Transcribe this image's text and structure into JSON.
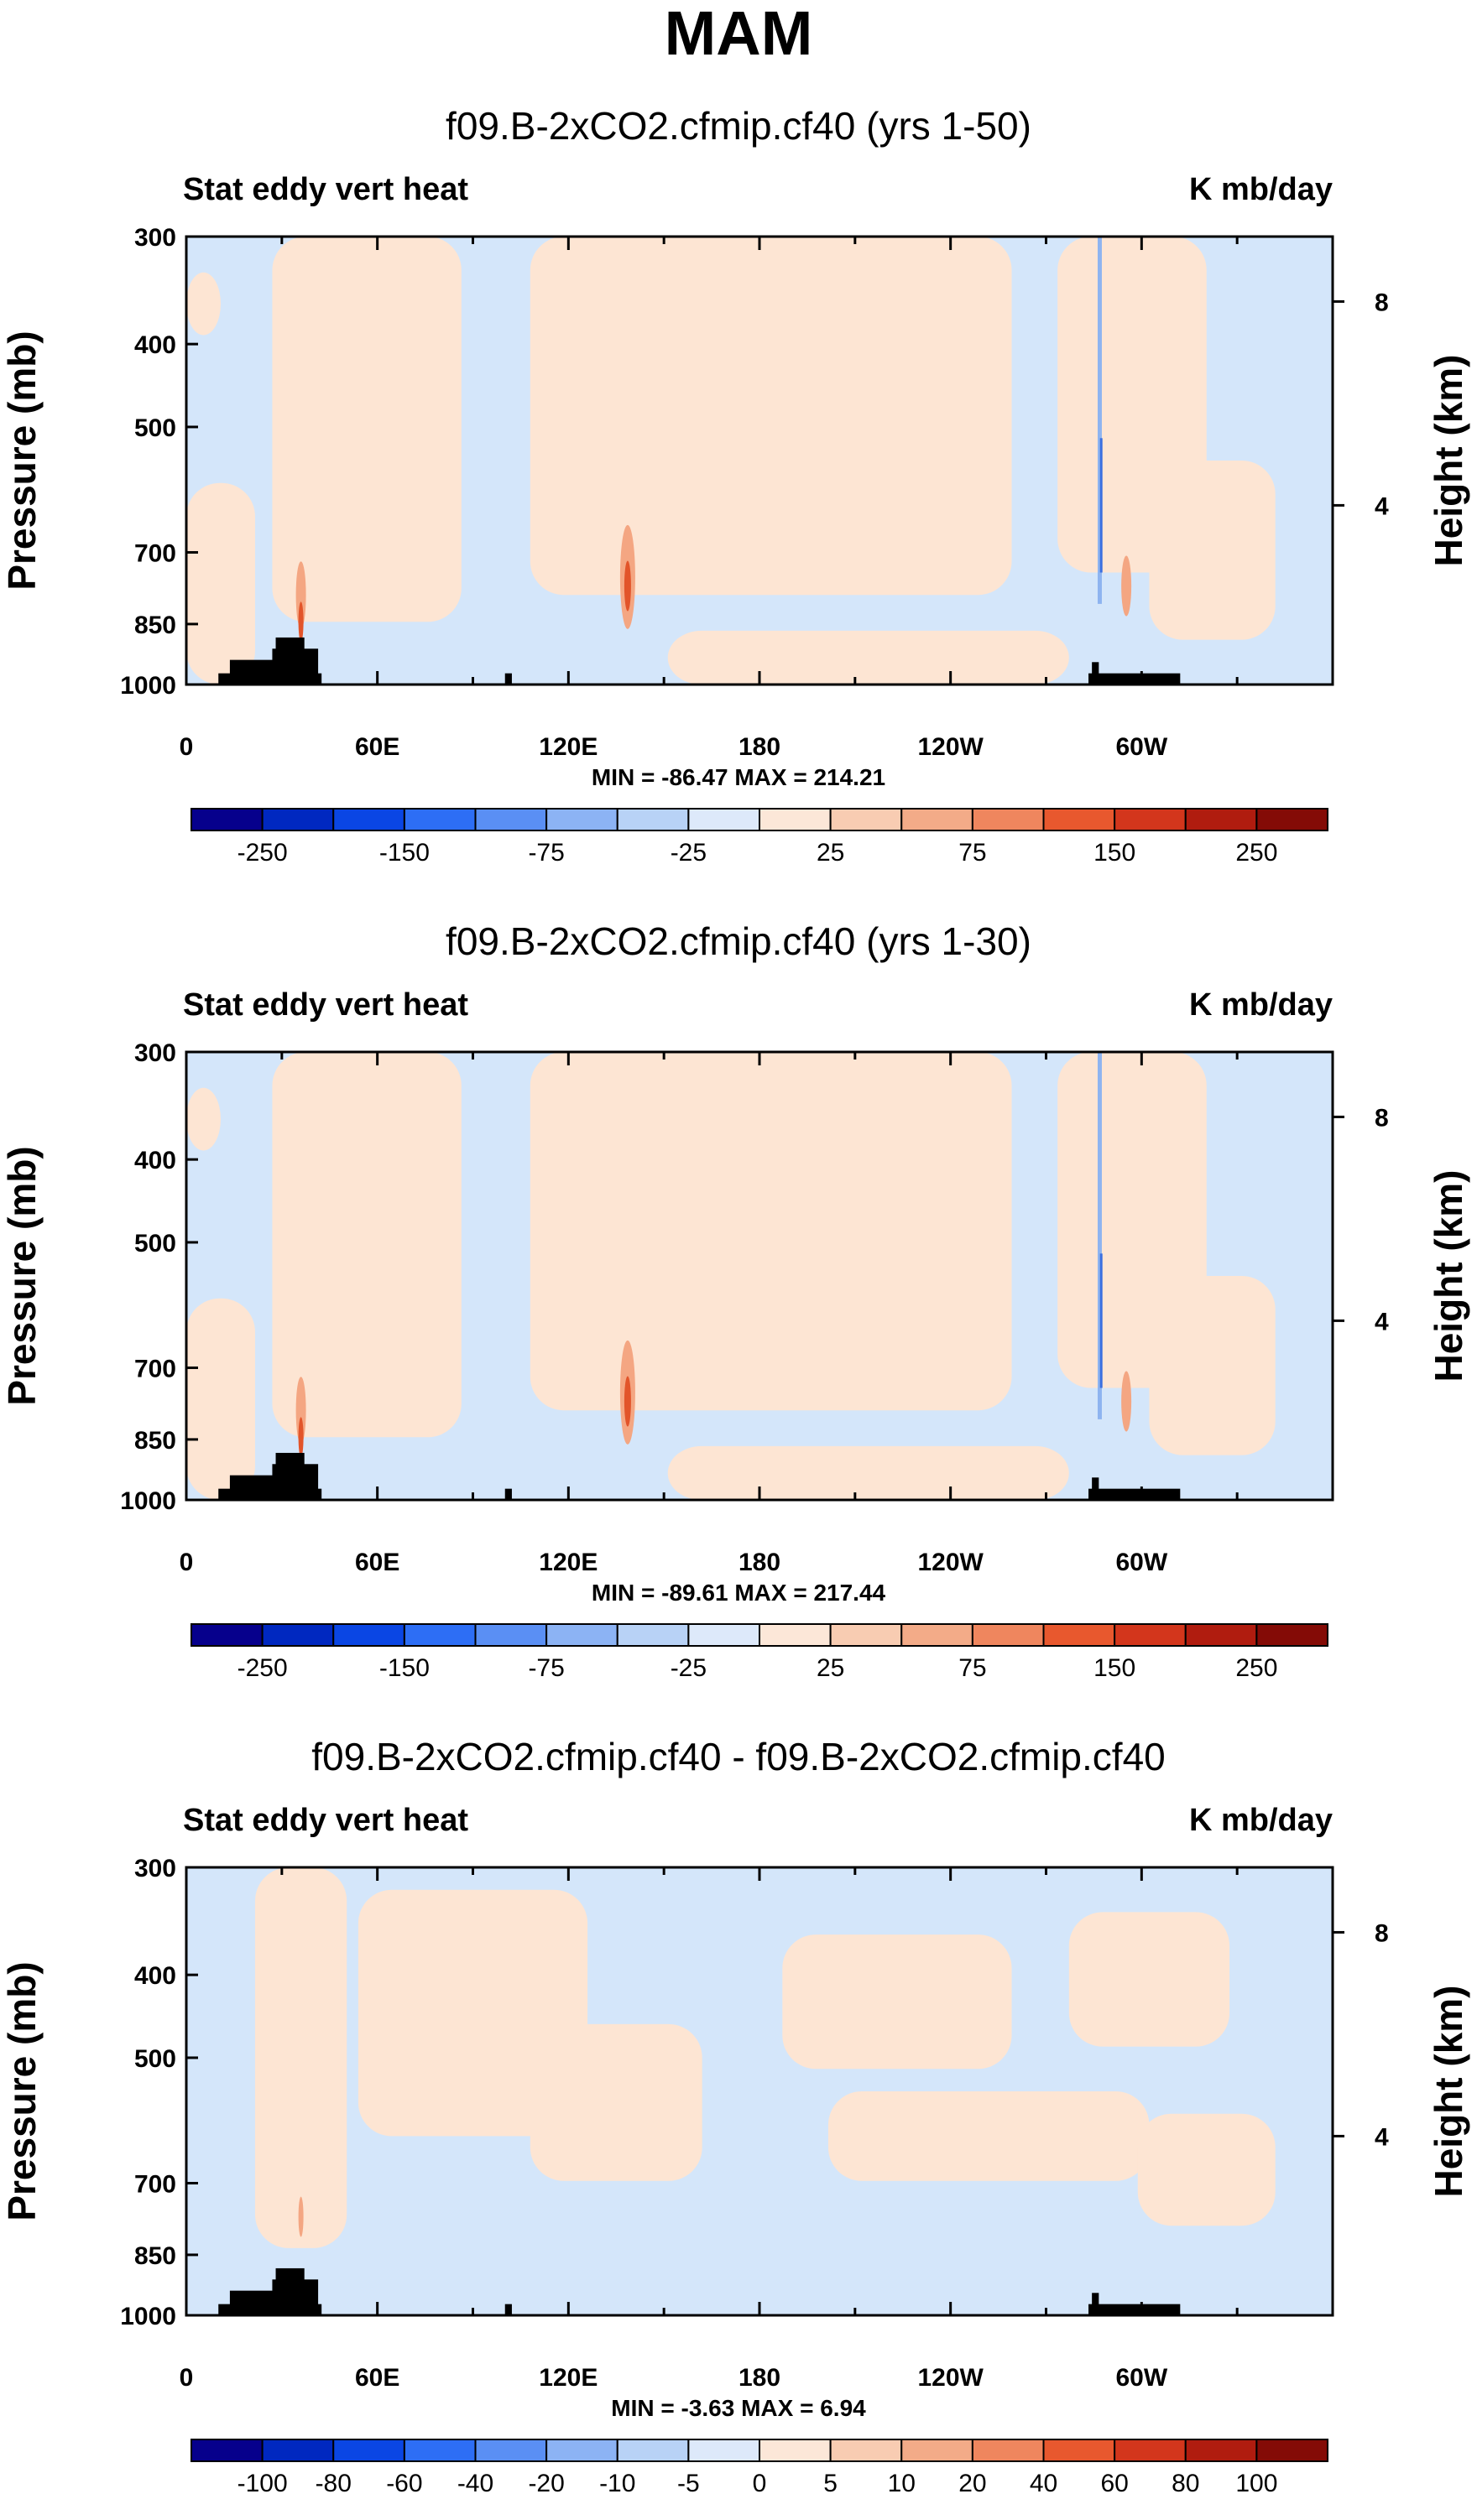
{
  "title": "MAM",
  "chart_data": [
    {
      "type": "heatmap",
      "title": "f09.B-2xCO2.cfmip.cf40 (yrs 1-50)",
      "left_label": "Stat eddy vert heat",
      "right_label": "K mb/day",
      "ylabel": "Pressure (mb)",
      "ylabel_right": "Height (km)",
      "y_ticks": [
        "300",
        "400",
        "500",
        "700",
        "850",
        "1000"
      ],
      "y_right_ticks": [
        "8",
        "4"
      ],
      "x_ticks": [
        "0",
        "60E",
        "120E",
        "180",
        "120W",
        "60W"
      ],
      "stats": "MIN = -86.47   MAX = 214.21",
      "colorbar_labels": [
        "-250",
        "-150",
        "-75",
        "-25",
        "25",
        "75",
        "150",
        "250"
      ]
    },
    {
      "type": "heatmap",
      "title": "f09.B-2xCO2.cfmip.cf40 (yrs 1-30)",
      "left_label": "Stat eddy vert heat",
      "right_label": "K mb/day",
      "ylabel": "Pressure (mb)",
      "ylabel_right": "Height (km)",
      "y_ticks": [
        "300",
        "400",
        "500",
        "700",
        "850",
        "1000"
      ],
      "y_right_ticks": [
        "8",
        "4"
      ],
      "x_ticks": [
        "0",
        "60E",
        "120E",
        "180",
        "120W",
        "60W"
      ],
      "stats": "MIN = -89.61   MAX = 217.44",
      "colorbar_labels": [
        "-250",
        "-150",
        "-75",
        "-25",
        "25",
        "75",
        "150",
        "250"
      ]
    },
    {
      "type": "heatmap",
      "title": "f09.B-2xCO2.cfmip.cf40 - f09.B-2xCO2.cfmip.cf40",
      "left_label": "Stat eddy vert heat",
      "right_label": "K mb/day",
      "ylabel": "Pressure (mb)",
      "ylabel_right": "Height (km)",
      "y_ticks": [
        "300",
        "400",
        "500",
        "700",
        "850",
        "1000"
      ],
      "y_right_ticks": [
        "8",
        "4"
      ],
      "x_ticks": [
        "0",
        "60E",
        "120E",
        "180",
        "120W",
        "60W"
      ],
      "stats": "MIN =  -3.63   MAX =   6.94",
      "colorbar_labels": [
        "-100",
        "-80",
        "-60",
        "-40",
        "-20",
        "-10",
        "-5",
        "0",
        "5",
        "10",
        "20",
        "40",
        "60",
        "80",
        "100"
      ]
    }
  ],
  "colors": {
    "colorbar": [
      "#06008c",
      "#0028c0",
      "#0a46e4",
      "#2d6ef5",
      "#5a8ff4",
      "#8cb3f4",
      "#b8d2f6",
      "#dde9fa",
      "#fce7d8",
      "#f8ccb2",
      "#f3ab88",
      "#ef865e",
      "#e8582e",
      "#d3361c",
      "#b01c0f",
      "#840b06"
    ],
    "pos_light": "#fde5d3",
    "neg_light": "#d4e6fa",
    "neg_mid": "#8eb4f0",
    "neg_strong": "#3a6fe0",
    "pos_mid": "#f4a682",
    "pos_strong": "#e2542a",
    "terrain": "#000000"
  }
}
